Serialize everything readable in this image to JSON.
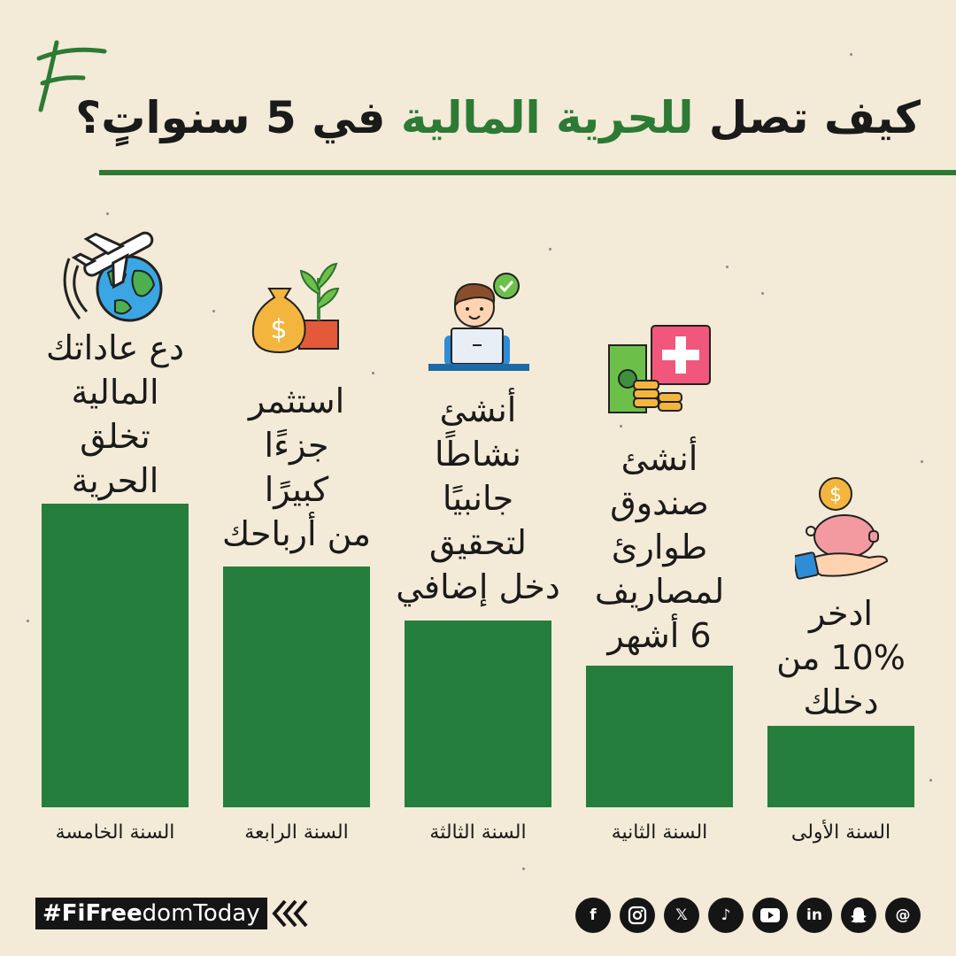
{
  "header": {
    "title_start": "كيف تصل ",
    "title_highlight": "للحرية المالية",
    "title_end": " في 5 سنواتٍ؟",
    "accent_color": "#2c7a34"
  },
  "steps": [
    {
      "year": "السنة الأولى",
      "lines": [
        "ادخر",
        "10% من",
        "دخلك"
      ],
      "icon": "piggy-bank-icon",
      "level": 1
    },
    {
      "year": "السنة الثانية",
      "lines": [
        "أنشئ",
        "صندوق",
        "طوارئ",
        "لمصاريف",
        "6 أشهر"
      ],
      "icon": "emergency-fund-icon",
      "level": 2
    },
    {
      "year": "السنة الثالثة",
      "lines": [
        "أنشئ",
        "نشاطًا",
        "جانبيًا",
        "لتحقيق",
        "دخل إضافي"
      ],
      "icon": "laptop-worker-icon",
      "level": 3
    },
    {
      "year": "السنة الرابعة",
      "lines": [
        "استثمر",
        "جزءًا",
        "كبيرًا",
        "من أرباحك"
      ],
      "icon": "money-bag-plant-icon",
      "level": 4
    },
    {
      "year": "السنة الخامسة",
      "lines": [
        "دع عاداتك",
        "المالية",
        "تخلق",
        "الحرية"
      ],
      "icon": "plane-globe-icon",
      "level": 5
    }
  ],
  "footer": {
    "hashtag_bold": "#FiFree",
    "hashtag_light": "domToday",
    "socials": [
      "facebook-icon",
      "instagram-icon",
      "x-icon",
      "tiktok-icon",
      "youtube-icon",
      "linkedin-icon",
      "snapchat-icon",
      "threads-icon"
    ]
  },
  "bar_color": "#257e3b"
}
